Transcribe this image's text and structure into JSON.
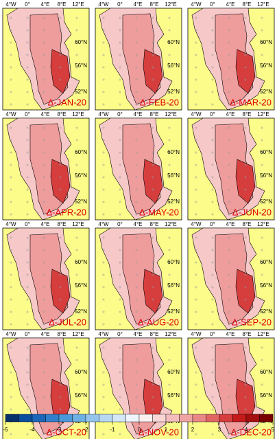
{
  "lon_labels": [
    "4°W",
    "0°",
    "4°E",
    "8°E",
    "12°E"
  ],
  "lat_labels": [
    "60°N",
    "56°N",
    "52°N"
  ],
  "panels": [
    "Δ-JAN-20",
    "Δ-FEB-20",
    "Δ-MAR-20",
    "Δ-APR-20",
    "Δ-MAY-20",
    "Δ-JUN-20",
    "Δ-JUL-20",
    "Δ-AUG-20",
    "Δ-SEP-20",
    "Δ-OCT-20",
    "Δ-NOV-20",
    "Δ-DEC-20"
  ],
  "colorbar": {
    "range": [
      -5,
      5
    ],
    "ticks": [
      -5,
      -4,
      -3,
      -2,
      -1,
      0,
      1,
      2,
      3,
      4,
      5
    ],
    "colors": [
      "#08306b",
      "#0b4e9e",
      "#1a66b8",
      "#2f7fcc",
      "#4a98d9",
      "#6db0e3",
      "#93c5ec",
      "#b7d8f3",
      "#d4e7f7",
      "#eef5fc",
      "#fdf0f0",
      "#f8d6d6",
      "#f4bcbc",
      "#efa3a3",
      "#e98888",
      "#e06666",
      "#d63d3d",
      "#c41a1a",
      "#a50f0f",
      "#7a0000"
    ]
  }
}
